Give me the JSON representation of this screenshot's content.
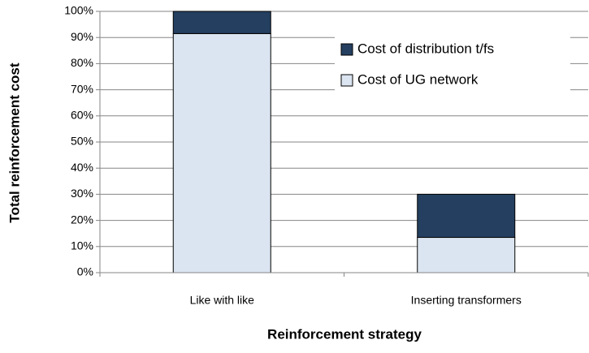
{
  "chart_data": {
    "type": "stacked_bar",
    "categories": [
      "Like with like",
      "Inserting transformers"
    ],
    "series": [
      {
        "name": "Cost of UG network",
        "color": "#dbe5f1",
        "values": [
          91.5,
          13.5
        ]
      },
      {
        "name": "Cost of distribution t/fs",
        "color": "#243f60",
        "values": [
          8.5,
          16.5
        ]
      }
    ],
    "x_label": "Reinforcement strategy",
    "y_label": "Total reinforcement  cost",
    "ylim": [
      0,
      100
    ],
    "yticks": [
      {
        "value": 0,
        "label": "0%"
      },
      {
        "value": 10,
        "label": "10%"
      },
      {
        "value": 20,
        "label": "20%"
      },
      {
        "value": 30,
        "label": "30%"
      },
      {
        "value": 40,
        "label": "40%"
      },
      {
        "value": 50,
        "label": "50%"
      },
      {
        "value": 60,
        "label": "60%"
      },
      {
        "value": 70,
        "label": "70%"
      },
      {
        "value": 80,
        "label": "80%"
      },
      {
        "value": 90,
        "label": "90%"
      },
      {
        "value": 100,
        "label": "100%"
      }
    ],
    "grid": true,
    "legend": "upper right"
  }
}
